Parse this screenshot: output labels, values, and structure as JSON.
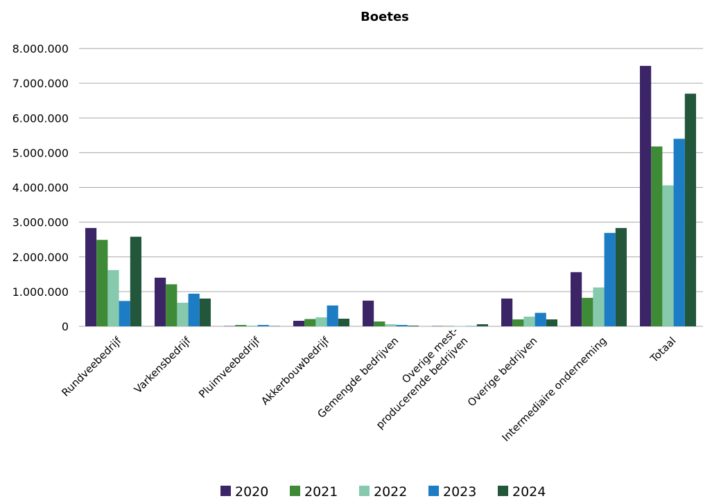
{
  "chart_data": {
    "type": "bar",
    "title": "Boetes",
    "xlabel": "",
    "ylabel": "",
    "ylim": [
      0,
      8000000
    ],
    "yticks": [
      0,
      1000000,
      2000000,
      3000000,
      4000000,
      5000000,
      6000000,
      7000000,
      8000000
    ],
    "ytick_labels": [
      "0",
      "1.000.000",
      "2.000.000",
      "3.000.000",
      "4.000.000",
      "5.000.000",
      "6.000.000",
      "7.000.000",
      "8.000.000"
    ],
    "grid": "horizontal",
    "legend_position": "bottom",
    "categories": [
      [
        "Rundveebedrijf"
      ],
      [
        "Varkensbedrijf"
      ],
      [
        "Pluimveebedrijf"
      ],
      [
        "Akkerbouwbedrijf"
      ],
      [
        "Gemengde bedrijven"
      ],
      [
        "Overige mest-",
        "producerende bedrijven"
      ],
      [
        "Overige bedrijven"
      ],
      [
        "Intermediaire onderneming"
      ],
      [
        "Totaal"
      ]
    ],
    "series": [
      {
        "name": "2020",
        "color": "#3b2566",
        "values": [
          2830000,
          1400000,
          10000,
          160000,
          740000,
          10000,
          800000,
          1560000,
          7500000
        ]
      },
      {
        "name": "2021",
        "color": "#3e8a37",
        "values": [
          2490000,
          1210000,
          40000,
          210000,
          140000,
          10000,
          200000,
          820000,
          5180000
        ]
      },
      {
        "name": "2022",
        "color": "#86c9ad",
        "values": [
          1620000,
          680000,
          20000,
          260000,
          60000,
          10000,
          280000,
          1120000,
          4060000
        ]
      },
      {
        "name": "2023",
        "color": "#1c7cc4",
        "values": [
          730000,
          940000,
          40000,
          600000,
          40000,
          10000,
          390000,
          2690000,
          5400000
        ]
      },
      {
        "name": "2024",
        "color": "#23573b",
        "values": [
          2580000,
          800000,
          10000,
          220000,
          20000,
          60000,
          200000,
          2830000,
          6700000
        ]
      }
    ]
  }
}
